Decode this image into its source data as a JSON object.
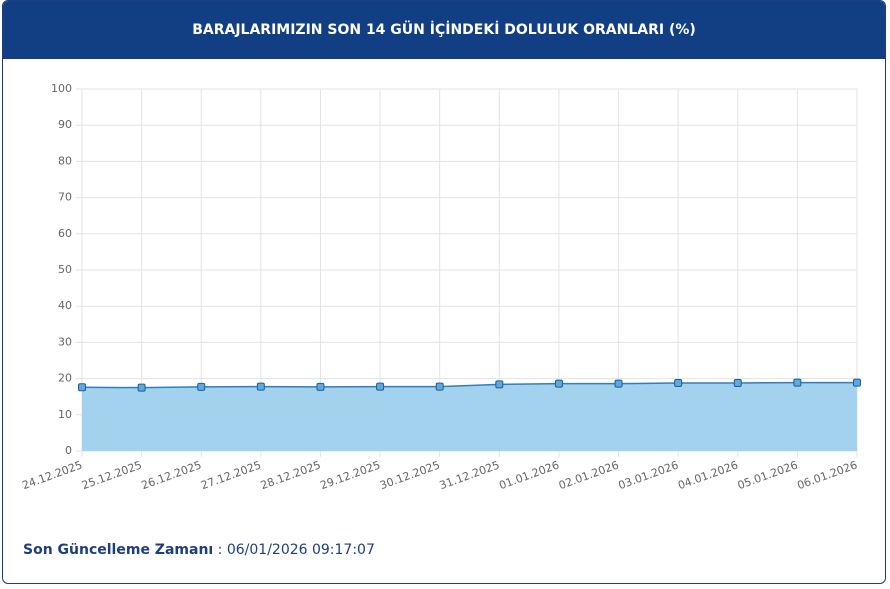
{
  "chart_data": {
    "type": "area",
    "title": "BARAJLARIMIZIN SON 14 GÜN İÇİNDEKİ DOLULUK ORANLARI (%)",
    "categories": [
      "24.12.2025",
      "25.12.2025",
      "26.12.2025",
      "27.12.2025",
      "28.12.2025",
      "29.12.2025",
      "30.12.2025",
      "31.12.2025",
      "01.01.2026",
      "02.01.2026",
      "03.01.2026",
      "04.01.2026",
      "05.01.2026",
      "06.01.2026"
    ],
    "series": [
      {
        "color": "#2f7fbf",
        "fill": "#9dd0ec",
        "values": [
          17.6,
          17.5,
          17.7,
          17.8,
          17.7,
          17.8,
          17.8,
          18.4,
          18.6,
          18.6,
          18.8,
          18.8,
          18.9,
          18.9
        ]
      }
    ],
    "ylim": [
      0,
      100
    ],
    "yticks": [
      0,
      10,
      20,
      30,
      40,
      50,
      60,
      70,
      80,
      90,
      100
    ],
    "grid": true
  },
  "footer": {
    "label": "Son Güncelleme Zamanı",
    "separator": ":",
    "value": "06/01/2026 09:17:07"
  }
}
